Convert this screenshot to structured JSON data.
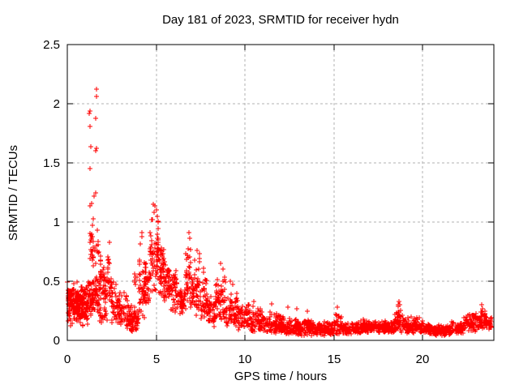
{
  "figure": {
    "title": "Day 181 of 2023, SRMTID for receiver hydn",
    "xlabel": "GPS time / hours",
    "ylabel": "SRMTID / TECUs"
  },
  "colors": {
    "marker": "#ff0000",
    "axis": "#000000",
    "grid": "#b0b0b0",
    "background": "#ffffff"
  },
  "chart_data": {
    "type": "scatter",
    "title": "Day 181 of 2023, SRMTID for receiver hydn",
    "xlabel": "GPS time / hours",
    "ylabel": "SRMTID / TECUs",
    "marker": "plus",
    "marker_color": "#ff0000",
    "marker_size_px": 7,
    "legend": "none",
    "grid": true,
    "xlim": [
      0,
      24
    ],
    "ylim": [
      0,
      2.5
    ],
    "xticks": {
      "values": [
        0,
        5,
        10,
        15,
        20
      ],
      "labels": [
        "0",
        "5",
        "10",
        "15",
        "20"
      ]
    },
    "yticks": {
      "values": [
        0,
        0.5,
        1,
        1.5,
        2,
        2.5
      ],
      "labels": [
        "0",
        "0.5",
        "1",
        "1.5",
        "2",
        "2.5"
      ]
    },
    "grid_x": [
      5,
      10,
      15,
      20
    ],
    "grid_y": [
      0.5,
      1,
      1.5,
      2
    ],
    "outlier_points": [
      [
        1.63,
        2.12
      ],
      [
        1.66,
        2.06
      ],
      [
        1.27,
        1.94
      ],
      [
        1.22,
        1.92
      ],
      [
        1.58,
        1.88
      ],
      [
        1.3,
        1.81
      ],
      [
        1.33,
        1.64
      ],
      [
        1.64,
        1.62
      ],
      [
        1.58,
        1.6
      ],
      [
        1.3,
        1.45
      ],
      [
        1.61,
        1.25
      ],
      [
        1.52,
        1.22
      ],
      [
        1.27,
        1.14
      ],
      [
        1.35,
        1.16
      ],
      [
        1.45,
        1.03
      ],
      [
        1.41,
        0.97
      ],
      [
        4.85,
        1.15
      ],
      [
        4.95,
        1.14
      ],
      [
        4.9,
        1.08
      ],
      [
        5.02,
        1.1
      ],
      [
        5.05,
        1.05
      ],
      [
        4.78,
        1.02
      ],
      [
        5.1,
        1.0
      ],
      [
        4.18,
        0.91
      ],
      [
        4.22,
        0.88
      ],
      [
        6.85,
        0.91
      ],
      [
        6.88,
        0.86
      ],
      [
        7.28,
        0.76
      ],
      [
        7.45,
        0.73
      ],
      [
        2.38,
        0.83
      ],
      [
        8.62,
        0.65
      ],
      [
        8.75,
        0.6
      ],
      [
        9.15,
        0.5
      ],
      [
        9.3,
        0.47
      ],
      [
        10.5,
        0.33
      ],
      [
        11.5,
        0.31
      ],
      [
        12.4,
        0.28
      ],
      [
        12.9,
        0.27
      ],
      [
        13.5,
        0.25
      ],
      [
        15.2,
        0.28
      ],
      [
        18.65,
        0.33
      ],
      [
        18.7,
        0.3
      ],
      [
        23.3,
        0.3
      ],
      [
        23.35,
        0.27
      ]
    ],
    "envelope_bins": [
      [
        0.02,
        0.3,
        0.1,
        0.5,
        55,
        1.0
      ],
      [
        0.3,
        0.6,
        0.12,
        0.52,
        60,
        1.0
      ],
      [
        0.6,
        0.9,
        0.1,
        0.48,
        60,
        1.0
      ],
      [
        0.9,
        1.15,
        0.12,
        0.46,
        50,
        1.0
      ],
      [
        1.15,
        1.45,
        0.18,
        0.55,
        45,
        1.0
      ],
      [
        1.45,
        1.8,
        0.2,
        0.55,
        45,
        1.0
      ],
      [
        1.25,
        1.8,
        0.55,
        0.97,
        30,
        1.0
      ],
      [
        1.8,
        2.0,
        0.3,
        0.88,
        25,
        1.2
      ],
      [
        2.0,
        2.25,
        0.28,
        0.72,
        24,
        1.2
      ],
      [
        1.8,
        2.25,
        0.14,
        0.3,
        20,
        1.0
      ],
      [
        2.25,
        2.5,
        0.2,
        0.83,
        26,
        1.3
      ],
      [
        2.5,
        2.8,
        0.14,
        0.55,
        30,
        1.2
      ],
      [
        2.8,
        3.4,
        0.1,
        0.42,
        62,
        1.2
      ],
      [
        3.4,
        4.0,
        0.07,
        0.3,
        75,
        1.1
      ],
      [
        3.75,
        3.95,
        0.45,
        0.65,
        6,
        1.0
      ],
      [
        4.0,
        4.35,
        0.18,
        0.9,
        40,
        1.3
      ],
      [
        4.35,
        4.65,
        0.28,
        0.75,
        40,
        1.1
      ],
      [
        4.65,
        5.15,
        0.35,
        1.1,
        62,
        1.1
      ],
      [
        5.15,
        5.45,
        0.32,
        0.88,
        45,
        1.1
      ],
      [
        5.45,
        5.8,
        0.3,
        0.7,
        42,
        1.0
      ],
      [
        5.8,
        6.2,
        0.22,
        0.64,
        40,
        1.1
      ],
      [
        6.2,
        6.6,
        0.18,
        0.5,
        40,
        1.1
      ],
      [
        6.6,
        6.95,
        0.25,
        0.85,
        40,
        1.2
      ],
      [
        6.95,
        7.15,
        0.22,
        0.58,
        20,
        1.1
      ],
      [
        7.15,
        7.45,
        0.2,
        0.76,
        34,
        1.2
      ],
      [
        7.45,
        7.9,
        0.15,
        0.68,
        40,
        1.3
      ],
      [
        7.9,
        8.35,
        0.1,
        0.42,
        46,
        1.2
      ],
      [
        8.35,
        8.9,
        0.12,
        0.64,
        55,
        1.3
      ],
      [
        8.9,
        9.6,
        0.1,
        0.48,
        62,
        1.3
      ],
      [
        9.6,
        10.3,
        0.08,
        0.37,
        65,
        1.3
      ],
      [
        10.3,
        11.0,
        0.07,
        0.3,
        70,
        1.4
      ],
      [
        11.0,
        12.0,
        0.06,
        0.25,
        92,
        1.5
      ],
      [
        12.0,
        13.0,
        0.05,
        0.22,
        92,
        1.5
      ],
      [
        13.0,
        14.0,
        0.04,
        0.18,
        92,
        1.4
      ],
      [
        14.0,
        15.0,
        0.04,
        0.17,
        92,
        1.4
      ],
      [
        15.0,
        15.5,
        0.05,
        0.25,
        46,
        1.5
      ],
      [
        15.5,
        16.5,
        0.05,
        0.17,
        88,
        1.4
      ],
      [
        16.5,
        17.5,
        0.06,
        0.19,
        88,
        1.4
      ],
      [
        17.5,
        18.4,
        0.06,
        0.18,
        80,
        1.4
      ],
      [
        18.4,
        18.9,
        0.07,
        0.33,
        52,
        1.5
      ],
      [
        18.9,
        20.0,
        0.06,
        0.22,
        96,
        1.5
      ],
      [
        20.0,
        20.6,
        0.05,
        0.16,
        54,
        1.4
      ],
      [
        20.6,
        21.6,
        0.04,
        0.13,
        92,
        1.2
      ],
      [
        21.6,
        22.3,
        0.05,
        0.17,
        64,
        1.2
      ],
      [
        22.3,
        23.0,
        0.07,
        0.24,
        64,
        1.1
      ],
      [
        23.0,
        23.55,
        0.08,
        0.28,
        56,
        1.1
      ],
      [
        23.55,
        23.88,
        0.09,
        0.2,
        30,
        1.0
      ]
    ]
  }
}
